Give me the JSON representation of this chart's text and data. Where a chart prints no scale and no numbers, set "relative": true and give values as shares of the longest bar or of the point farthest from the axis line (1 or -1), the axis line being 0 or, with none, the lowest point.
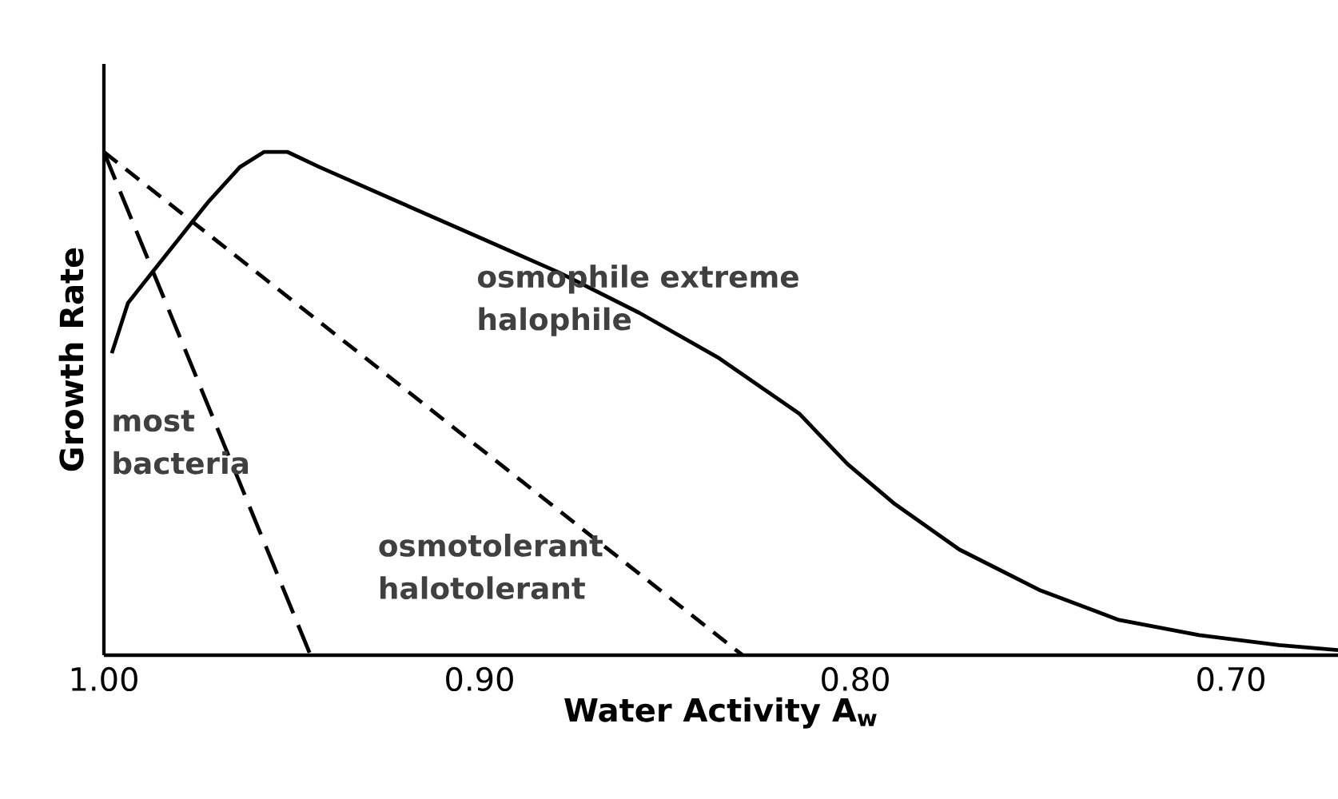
{
  "chart_data": {
    "type": "line",
    "relative": true,
    "xlabel": "Water Activity A$_{w}$",
    "ylabel": "Growth Rate",
    "xlim": [
      1.0,
      0.6715
    ],
    "xticks": [
      {
        "value": 1.0,
        "label": "1.00"
      },
      {
        "value": 0.9,
        "label": "0.90"
      },
      {
        "value": 0.8,
        "label": "0.80"
      },
      {
        "value": 0.7,
        "label": "0.70"
      }
    ],
    "series": [
      {
        "name": "most bacteria",
        "color": "#000000",
        "line_style": "dashed",
        "x": [
          1.0,
          0.945
        ],
        "values": [
          1.0,
          0.0
        ]
      },
      {
        "name": "osmotolerant halotolerant",
        "color": "#000000",
        "line_style": "dashed",
        "x": [
          1.0,
          0.83
        ],
        "values": [
          1.0,
          0.0
        ]
      },
      {
        "name": "osmophile extreme halophile",
        "color": "#000000",
        "line_style": "solid",
        "x": [
          0.9979,
          0.9936,
          0.9851,
          0.9723,
          0.9638,
          0.9574,
          0.9511,
          0.9426,
          0.9213,
          0.9,
          0.8787,
          0.8574,
          0.8362,
          0.8149,
          0.8021,
          0.7894,
          0.7723,
          0.7511,
          0.7298,
          0.7085,
          0.6872,
          0.6715
        ],
        "values": [
          0.6,
          0.7,
          0.78,
          0.9,
          0.97,
          1.0,
          1.0,
          0.97,
          0.9,
          0.83,
          0.76,
          0.68,
          0.59,
          0.48,
          0.38,
          0.3,
          0.21,
          0.13,
          0.07,
          0.04,
          0.02,
          0.01
        ]
      }
    ]
  }
}
